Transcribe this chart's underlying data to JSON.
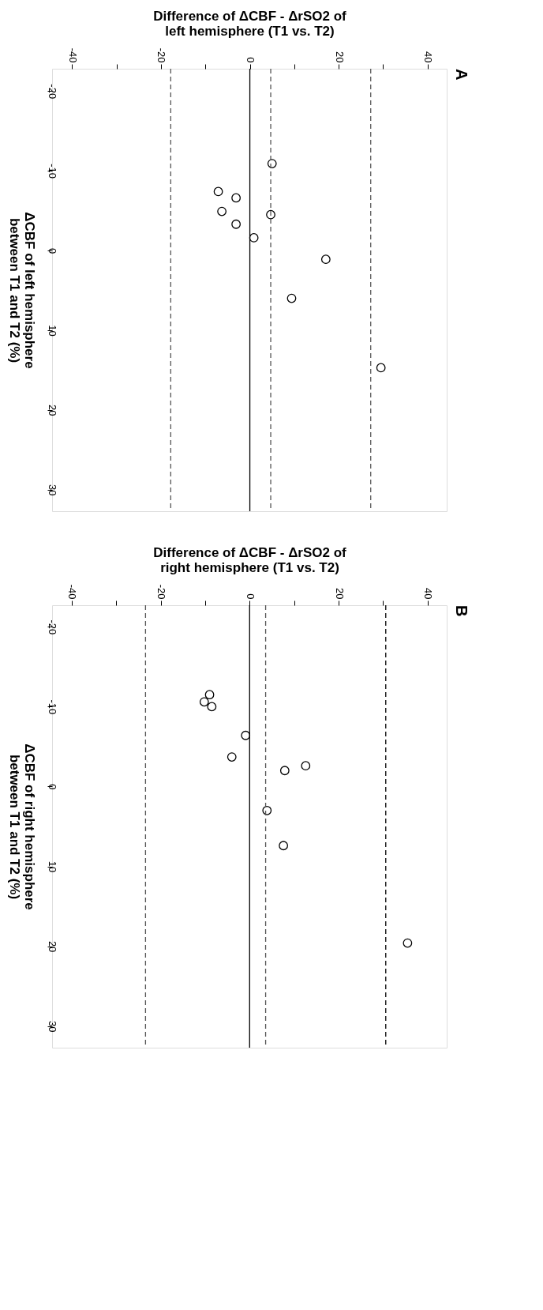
{
  "chart_data": [
    {
      "type": "scatter",
      "title": "A",
      "xlabel": "Difference of ΔCBF - ΔrSO2 of\nleft hemisphere (T1 vs. T2)",
      "ylabel": "ΔCBF of left hemisphere\nbetween T1 and T2 (%)",
      "x": [
        5.0,
        -7.1,
        -3.1,
        -6.3,
        4.7,
        -3.1,
        0.9,
        17.1,
        9.4,
        29.5
      ],
      "series": [
        {
          "color": "#000000",
          "values": [
            -10.9,
            -7.4,
            -6.6,
            -4.9,
            -4.5,
            -3.3,
            -1.6,
            1.1,
            6.0,
            14.7
          ]
        }
      ],
      "marker": "circle",
      "ylim": [
        32.7,
        -22.8
      ],
      "yticks": [
        -20,
        -10,
        0,
        10,
        20,
        30
      ],
      "xlim": [
        -44.5,
        44.3
      ],
      "xticks": [
        -40,
        {
          "value": -30,
          "label": null
        },
        -20,
        {
          "value": -10,
          "label": null
        },
        0,
        {
          "value": 10,
          "label": null
        },
        20,
        {
          "value": 30,
          "label": null
        },
        40
      ],
      "ref_lines": [
        {
          "axis": "x",
          "value": 0,
          "label": null,
          "color": "#000000",
          "line_style": "solid"
        },
        {
          "axis": "x",
          "value": -17.8,
          "label": null,
          "color": "#555555",
          "line_style": "dashed"
        },
        {
          "axis": "x",
          "value": 4.7,
          "label": null,
          "color": "#555555",
          "line_style": "dashed"
        },
        {
          "axis": "x",
          "value": 27.2,
          "label": null,
          "color": "#555555",
          "line_style": "dashed"
        }
      ],
      "grid": false
    },
    {
      "type": "scatter",
      "title": "B",
      "xlabel": "Difference of ΔCBF - ΔrSO2 of\nright hemisphere (T1 vs. T2)",
      "ylabel": "ΔCBF of right hemisphere\nbetween T1 and T2 (%)",
      "x": [
        -9.0,
        -10.2,
        -8.5,
        -0.9,
        -4.0,
        12.6,
        7.9,
        3.9,
        7.6,
        35.5
      ],
      "series": [
        {
          "color": "#000000",
          "values": [
            -11.5,
            -10.6,
            -10.0,
            -6.4,
            -3.7,
            -2.6,
            -2.0,
            3.0,
            7.4,
            19.6
          ]
        }
      ],
      "marker": "circle",
      "ylim": [
        32.7,
        -22.7
      ],
      "yticks": [
        -20,
        -10,
        0,
        10,
        20,
        30
      ],
      "xlim": [
        -44.4,
        44.3
      ],
      "xticks": [
        -40,
        {
          "value": -30,
          "label": null
        },
        -20,
        {
          "value": -10,
          "label": null
        },
        0,
        {
          "value": 10,
          "label": null
        },
        20,
        {
          "value": 30,
          "label": null
        },
        40
      ],
      "ref_lines": [
        {
          "axis": "x",
          "value": 0,
          "label": null,
          "color": "#000000",
          "line_style": "solid"
        },
        {
          "axis": "x",
          "value": -23.4,
          "label": null,
          "color": "#555555",
          "line_style": "dashed"
        },
        {
          "axis": "x",
          "value": 3.6,
          "label": null,
          "color": "#555555",
          "line_style": "dashed"
        },
        {
          "axis": "x",
          "value": 30.6,
          "label": null,
          "color": "#000000",
          "line_style": "dashed"
        }
      ],
      "grid": false
    }
  ]
}
